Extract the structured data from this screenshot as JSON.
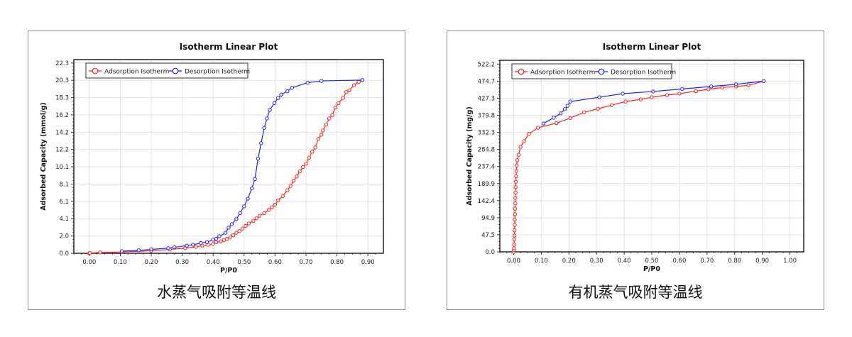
{
  "chart_data": [
    {
      "type": "line",
      "title": "Isotherm Linear Plot",
      "caption": "水蒸气吸附等温线",
      "xlabel": "P/P0",
      "ylabel": "Adsorbed Capacity (mmol/g)",
      "xlim": [
        -0.05,
        0.95
      ],
      "ylim": [
        0,
        22.7
      ],
      "grid": true,
      "legend": "top-left",
      "xticks": [
        "0.00",
        "0.10",
        "0.20",
        "0.30",
        "0.40",
        "0.50",
        "0.60",
        "0.70",
        "0.80",
        "0.90"
      ],
      "yticks": [
        "0.0",
        "2.0",
        "4.1",
        "6.1",
        "8.1",
        "10.1",
        "12.2",
        "14.2",
        "16.2",
        "18.3",
        "20.3",
        "22.3"
      ],
      "ytick_step": 2.0273,
      "series": [
        {
          "name": "Adsorption Isotherm",
          "color": "#ff2020",
          "points": [
            [
              0,
              0
            ],
            [
              0.002,
              0.02
            ],
            [
              0.035,
              0.1
            ],
            [
              0.105,
              0.15
            ],
            [
              0.2,
              0.3
            ],
            [
              0.26,
              0.45
            ],
            [
              0.31,
              0.6
            ],
            [
              0.345,
              0.75
            ],
            [
              0.365,
              0.9
            ],
            [
              0.385,
              1.0
            ],
            [
              0.4,
              1.1
            ],
            [
              0.41,
              1.3
            ],
            [
              0.425,
              1.4
            ],
            [
              0.435,
              1.55
            ],
            [
              0.445,
              1.7
            ],
            [
              0.455,
              1.85
            ],
            [
              0.465,
              2.1
            ],
            [
              0.475,
              2.4
            ],
            [
              0.485,
              2.6
            ],
            [
              0.495,
              2.9
            ],
            [
              0.505,
              3.2
            ],
            [
              0.515,
              3.5
            ],
            [
              0.53,
              3.8
            ],
            [
              0.54,
              4.1
            ],
            [
              0.55,
              4.4
            ],
            [
              0.565,
              4.7
            ],
            [
              0.58,
              5.1
            ],
            [
              0.59,
              5.4
            ],
            [
              0.6,
              5.7
            ],
            [
              0.61,
              6.2
            ],
            [
              0.625,
              6.7
            ],
            [
              0.64,
              7.4
            ],
            [
              0.65,
              7.9
            ],
            [
              0.66,
              8.5
            ],
            [
              0.67,
              9.0
            ],
            [
              0.68,
              9.6
            ],
            [
              0.69,
              10.1
            ],
            [
              0.7,
              10.5
            ],
            [
              0.71,
              11.2
            ],
            [
              0.72,
              11.9
            ],
            [
              0.73,
              12.4
            ],
            [
              0.74,
              13.4
            ],
            [
              0.75,
              13.9
            ],
            [
              0.755,
              14.4
            ],
            [
              0.765,
              15.1
            ],
            [
              0.775,
              15.8
            ],
            [
              0.785,
              16.2
            ],
            [
              0.795,
              17.1
            ],
            [
              0.805,
              17.6
            ],
            [
              0.82,
              18.2
            ],
            [
              0.83,
              18.9
            ],
            [
              0.84,
              19.1
            ],
            [
              0.855,
              19.7
            ],
            [
              0.87,
              20.1
            ],
            [
              0.882,
              20.3
            ]
          ]
        },
        {
          "name": "Desorption Isotherm",
          "color": "#2020ff",
          "points": [
            [
              0.882,
              20.3
            ],
            [
              0.75,
              20.2
            ],
            [
              0.705,
              20.0
            ],
            [
              0.655,
              19.4
            ],
            [
              0.64,
              19.0
            ],
            [
              0.62,
              18.6
            ],
            [
              0.61,
              18.2
            ],
            [
              0.598,
              17.6
            ],
            [
              0.583,
              16.8
            ],
            [
              0.574,
              15.8
            ],
            [
              0.565,
              14.7
            ],
            [
              0.555,
              12.9
            ],
            [
              0.545,
              11.1
            ],
            [
              0.535,
              8.7
            ],
            [
              0.525,
              7.6
            ],
            [
              0.512,
              6.4
            ],
            [
              0.5,
              5.5
            ],
            [
              0.487,
              4.7
            ],
            [
              0.475,
              4.0
            ],
            [
              0.46,
              3.4
            ],
            [
              0.45,
              3.0
            ],
            [
              0.44,
              2.4
            ],
            [
              0.42,
              2.0
            ],
            [
              0.41,
              1.7
            ],
            [
              0.4,
              1.6
            ],
            [
              0.38,
              1.3
            ],
            [
              0.36,
              1.2
            ],
            [
              0.335,
              1.0
            ],
            [
              0.315,
              0.9
            ],
            [
              0.275,
              0.7
            ],
            [
              0.255,
              0.6
            ],
            [
              0.2,
              0.45
            ],
            [
              0.16,
              0.35
            ],
            [
              0.105,
              0.25
            ]
          ]
        }
      ]
    },
    {
      "type": "line",
      "title": "Isotherm Linear Plot",
      "caption": "有机蒸气吸附等温线",
      "xlabel": "P/P0",
      "ylabel": "Adsorbed Capacity (mg/g)",
      "xlim": [
        -0.05,
        1.05
      ],
      "ylim": [
        0,
        532.7
      ],
      "grid": true,
      "legend": "top-left",
      "xticks": [
        "0.00",
        "0.10",
        "0.20",
        "0.30",
        "0.40",
        "0.50",
        "0.60",
        "0.70",
        "0.80",
        "0.90",
        "1.00"
      ],
      "yticks": [
        "0.0",
        "47.5",
        "94.9",
        "142.4",
        "189.9",
        "237.4",
        "284.8",
        "332.3",
        "379.8",
        "427.3",
        "474.7",
        "522.2"
      ],
      "ytick_step": 47.4727,
      "series": [
        {
          "name": "Adsorption Isotherm",
          "color": "#ff2020",
          "points": [
            [
              0,
              0
            ],
            [
              0.001,
              5
            ],
            [
              0.001,
              10
            ],
            [
              0.002,
              20
            ],
            [
              0.002,
              35
            ],
            [
              0.003,
              45
            ],
            [
              0.003,
              60
            ],
            [
              0.004,
              75
            ],
            [
              0.004,
              90
            ],
            [
              0.005,
              105
            ],
            [
              0.005,
              120
            ],
            [
              0.006,
              135
            ],
            [
              0.006,
              150
            ],
            [
              0.007,
              165
            ],
            [
              0.007,
              180
            ],
            [
              0.008,
              195
            ],
            [
              0.009,
              210
            ],
            [
              0.01,
              225
            ],
            [
              0.011,
              240
            ],
            [
              0.013,
              255
            ],
            [
              0.018,
              270
            ],
            [
              0.025,
              292
            ],
            [
              0.038,
              308
            ],
            [
              0.055,
              328
            ],
            [
              0.088,
              345
            ],
            [
              0.155,
              358
            ],
            [
              0.205,
              372
            ],
            [
              0.255,
              388
            ],
            [
              0.305,
              398
            ],
            [
              0.355,
              408
            ],
            [
              0.405,
              418
            ],
            [
              0.46,
              424
            ],
            [
              0.5,
              430
            ],
            [
              0.555,
              436
            ],
            [
              0.6,
              440
            ],
            [
              0.66,
              447
            ],
            [
              0.705,
              452
            ],
            [
              0.755,
              457
            ],
            [
              0.805,
              460
            ],
            [
              0.85,
              463
            ],
            [
              0.905,
              474.7
            ]
          ]
        },
        {
          "name": "Desorption Isotherm",
          "color": "#2020ff",
          "points": [
            [
              0.905,
              474.7
            ],
            [
              0.805,
              466
            ],
            [
              0.715,
              460
            ],
            [
              0.61,
              453
            ],
            [
              0.505,
              446
            ],
            [
              0.395,
              440
            ],
            [
              0.31,
              430
            ],
            [
              0.205,
              418
            ],
            [
              0.195,
              406
            ],
            [
              0.185,
              397
            ],
            [
              0.17,
              385
            ],
            [
              0.145,
              373
            ],
            [
              0.108,
              357
            ]
          ]
        }
      ]
    }
  ]
}
